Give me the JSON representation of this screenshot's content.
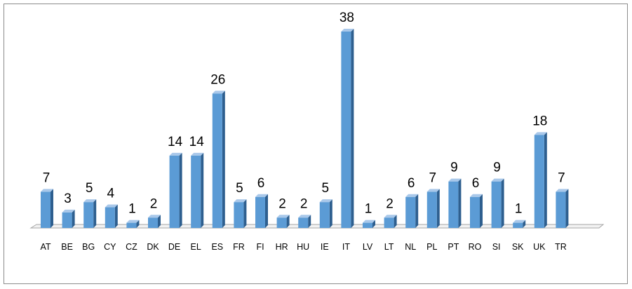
{
  "chart_data": {
    "type": "bar",
    "title": "",
    "xlabel": "",
    "ylabel": "",
    "categories": [
      "AT",
      "BE",
      "BG",
      "CY",
      "CZ",
      "DK",
      "DE",
      "EL",
      "ES",
      "FR",
      "FI",
      "HR",
      "HU",
      "IE",
      "IT",
      "LV",
      "LT",
      "NL",
      "PL",
      "PT",
      "RO",
      "SI",
      "SK",
      "UK",
      "TR"
    ],
    "values": [
      7,
      3,
      5,
      4,
      1,
      2,
      14,
      14,
      26,
      5,
      6,
      2,
      2,
      5,
      38,
      1,
      2,
      6,
      7,
      9,
      6,
      9,
      1,
      18,
      7
    ],
    "ylim": [
      0,
      38
    ],
    "grid": false,
    "legend": "none",
    "data_labels": true,
    "style": "3d-column",
    "colors": {
      "bar_front": "#5b9bd5",
      "bar_side": "#2e5f8f",
      "bar_top": "#a9c8ea",
      "axis": "#a6a6a6",
      "frame": "#8c8c8c"
    }
  }
}
